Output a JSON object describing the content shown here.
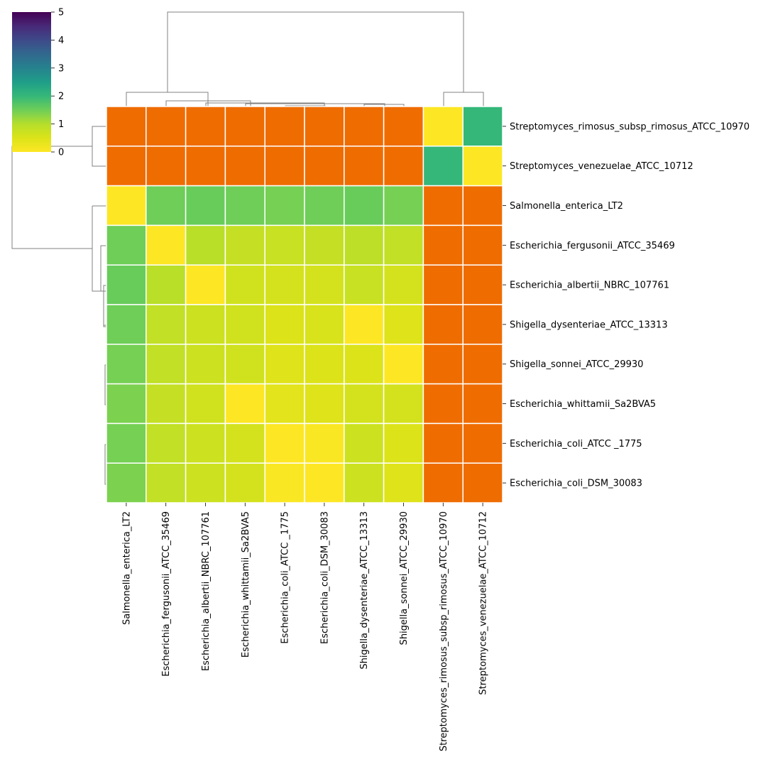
{
  "chart_data": {
    "type": "heatmap",
    "subtype": "clustermap",
    "rows": [
      "Streptomyces_rimosus_subsp_rimosus_ATCC_10970",
      "Streptomyces_venezuelae_ATCC_10712",
      "Salmonella_enterica_LT2",
      "Escherichia_fergusonii_ATCC_35469",
      "Escherichia_albertii_NBRC_107761",
      "Shigella_dysenteriae_ATCC_13313",
      "Shigella_sonnei_ATCC_29930",
      "Escherichia_whittamii_Sa2BVA5",
      "Escherichia_coli_ATCC _1775",
      "Escherichia_coli_DSM_30083"
    ],
    "columns": [
      "Salmonella_enterica_LT2",
      "Escherichia_fergusonii_ATCC_35469",
      "Escherichia_albertii_NBRC_107761",
      "Escherichia_whittamii_Sa2BVA5",
      "Escherichia_coli_ATCC _1775",
      "Escherichia_coli_DSM_30083",
      "Shigella_dysenteriae_ATCC_13313",
      "Shigella_sonnei_ATCC_29930",
      "Streptomyces_rimosus_subsp_rimosus_ATCC_10970",
      "Streptomyces_venezuelae_ATCC_10712"
    ],
    "values": [
      [
        null,
        null,
        null,
        null,
        null,
        null,
        null,
        null,
        0.0,
        2.0
      ],
      [
        null,
        null,
        null,
        null,
        null,
        null,
        null,
        null,
        2.0,
        0.0
      ],
      [
        0.0,
        1.5,
        1.55,
        1.5,
        1.45,
        1.5,
        1.55,
        1.45,
        null,
        null
      ],
      [
        1.5,
        0.0,
        0.95,
        0.8,
        0.75,
        0.8,
        0.9,
        0.85,
        null,
        null
      ],
      [
        1.55,
        0.95,
        0.0,
        0.65,
        0.6,
        0.6,
        0.75,
        0.6,
        null,
        null
      ],
      [
        1.5,
        0.85,
        0.7,
        0.65,
        0.5,
        0.55,
        0.0,
        0.45,
        null,
        null
      ],
      [
        1.45,
        0.85,
        0.7,
        0.65,
        0.45,
        0.5,
        0.5,
        0.0,
        null,
        null
      ],
      [
        1.4,
        0.8,
        0.65,
        0.0,
        0.4,
        0.45,
        0.6,
        0.6,
        null,
        null
      ],
      [
        1.45,
        0.85,
        0.7,
        0.6,
        0.0,
        0.05,
        0.7,
        0.5,
        null,
        null
      ],
      [
        1.4,
        0.85,
        0.7,
        0.6,
        0.05,
        0.0,
        0.7,
        0.45,
        null,
        null
      ]
    ],
    "missing_color": "#ef6c00",
    "colormap": "viridis_r",
    "colorbar": {
      "min": 0,
      "max": 5,
      "ticks": [
        "0",
        "1",
        "2",
        "3",
        "4",
        "5"
      ]
    },
    "grid_color": "#ffffff",
    "dendrogram_color": "#808080"
  }
}
